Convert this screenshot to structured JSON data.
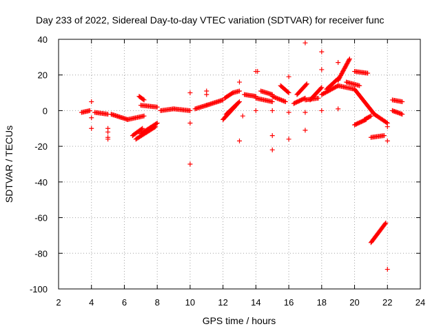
{
  "chart_data": {
    "type": "scatter",
    "title": "Day 233 of 2022, Sidereal Day-to-day VTEC variation (SDTVAR) for receiver func",
    "xlabel": "GPS time / hours",
    "ylabel": "SDTVAR / TECUs",
    "xlim": [
      2,
      24
    ],
    "ylim": [
      -100,
      40
    ],
    "xticks": [
      "2",
      "4",
      "6",
      "8",
      "10",
      "12",
      "14",
      "16",
      "18",
      "20",
      "22",
      "24"
    ],
    "yticks": [
      "-100",
      "-80",
      "-60",
      "-40",
      "-20",
      "0",
      "20",
      "40"
    ],
    "grid": true,
    "marker": "plus",
    "color": "#ff0000",
    "segments": [
      {
        "x0": 3.4,
        "y0": -1,
        "x1": 3.9,
        "y1": 0
      },
      {
        "x0": 4.2,
        "y0": -1,
        "x1": 5.0,
        "y1": -2
      },
      {
        "x0": 5.2,
        "y0": -2,
        "x1": 6.2,
        "y1": -5
      },
      {
        "x0": 6.2,
        "y0": -5,
        "x1": 7.2,
        "y1": -3
      },
      {
        "x0": 6.5,
        "y0": -14,
        "x1": 7.1,
        "y1": -10
      },
      {
        "x0": 6.7,
        "y0": -16,
        "x1": 7.9,
        "y1": -9
      },
      {
        "x0": 7.0,
        "y0": -13,
        "x1": 8.0,
        "y1": -7
      },
      {
        "x0": 6.9,
        "y0": 8,
        "x1": 7.2,
        "y1": 6
      },
      {
        "x0": 7.0,
        "y0": 3,
        "x1": 8.0,
        "y1": 2
      },
      {
        "x0": 8.2,
        "y0": 0,
        "x1": 9.0,
        "y1": 1
      },
      {
        "x0": 9.0,
        "y0": 1,
        "x1": 10.0,
        "y1": 0
      },
      {
        "x0": 10.3,
        "y0": 1,
        "x1": 11.0,
        "y1": 3
      },
      {
        "x0": 11.0,
        "y0": 3,
        "x1": 12.0,
        "y1": 6
      },
      {
        "x0": 12.0,
        "y0": -5,
        "x1": 12.8,
        "y1": 3
      },
      {
        "x0": 12.2,
        "y0": -2,
        "x1": 13.0,
        "y1": 5
      },
      {
        "x0": 12.1,
        "y0": 7,
        "x1": 12.6,
        "y1": 10
      },
      {
        "x0": 12.6,
        "y0": 10,
        "x1": 13.0,
        "y1": 11
      },
      {
        "x0": 13.3,
        "y0": 9,
        "x1": 14.0,
        "y1": 8
      },
      {
        "x0": 14.3,
        "y0": 11,
        "x1": 15.0,
        "y1": 9
      },
      {
        "x0": 14.0,
        "y0": 7,
        "x1": 15.0,
        "y1": 5
      },
      {
        "x0": 15.0,
        "y0": 8,
        "x1": 15.8,
        "y1": 5
      },
      {
        "x0": 15.5,
        "y0": 14,
        "x1": 16.0,
        "y1": 10
      },
      {
        "x0": 16.3,
        "y0": 4,
        "x1": 17.0,
        "y1": 7
      },
      {
        "x0": 16.5,
        "y0": 9,
        "x1": 17.1,
        "y1": 15
      },
      {
        "x0": 17.0,
        "y0": 6,
        "x1": 17.8,
        "y1": 7
      },
      {
        "x0": 17.3,
        "y0": 6,
        "x1": 18.0,
        "y1": 13
      },
      {
        "x0": 18.0,
        "y0": 9,
        "x1": 19.0,
        "y1": 14
      },
      {
        "x0": 18.3,
        "y0": 12,
        "x1": 19.0,
        "y1": 18
      },
      {
        "x0": 19.0,
        "y0": 17,
        "x1": 19.7,
        "y1": 29
      },
      {
        "x0": 19.0,
        "y0": 14,
        "x1": 20.0,
        "y1": 12
      },
      {
        "x0": 19.5,
        "y0": 16,
        "x1": 20.3,
        "y1": 14
      },
      {
        "x0": 20.0,
        "y0": 22,
        "x1": 20.8,
        "y1": 21
      },
      {
        "x0": 20.0,
        "y0": 12,
        "x1": 21.2,
        "y1": -2
      },
      {
        "x0": 21.2,
        "y0": -2,
        "x1": 22.0,
        "y1": -7
      },
      {
        "x0": 20.0,
        "y0": -8,
        "x1": 20.7,
        "y1": -5
      },
      {
        "x0": 20.6,
        "y0": -5,
        "x1": 21.0,
        "y1": -3
      },
      {
        "x0": 21.0,
        "y0": -15,
        "x1": 21.8,
        "y1": -14
      },
      {
        "x0": 21.0,
        "y0": -74,
        "x1": 21.9,
        "y1": -63
      },
      {
        "x0": 22.3,
        "y0": 6,
        "x1": 22.9,
        "y1": 5
      },
      {
        "x0": 22.3,
        "y0": 0,
        "x1": 22.9,
        "y1": -2
      }
    ],
    "points": [
      {
        "x": 4.0,
        "y": 5
      },
      {
        "x": 4.0,
        "y": -4
      },
      {
        "x": 4.0,
        "y": -10
      },
      {
        "x": 5.0,
        "y": -10
      },
      {
        "x": 5.0,
        "y": -12
      },
      {
        "x": 5.0,
        "y": -15
      },
      {
        "x": 5.0,
        "y": -16
      },
      {
        "x": 10.0,
        "y": 10
      },
      {
        "x": 10.0,
        "y": -7
      },
      {
        "x": 10.0,
        "y": -30
      },
      {
        "x": 11.0,
        "y": 11
      },
      {
        "x": 11.0,
        "y": 9
      },
      {
        "x": 13.0,
        "y": 16
      },
      {
        "x": 13.0,
        "y": -17
      },
      {
        "x": 13.2,
        "y": -3
      },
      {
        "x": 14.0,
        "y": 22
      },
      {
        "x": 14.1,
        "y": 22
      },
      {
        "x": 14.0,
        "y": 0
      },
      {
        "x": 15.0,
        "y": -14
      },
      {
        "x": 15.0,
        "y": -22
      },
      {
        "x": 15.0,
        "y": 0
      },
      {
        "x": 16.0,
        "y": 19
      },
      {
        "x": 16.0,
        "y": -16
      },
      {
        "x": 16.0,
        "y": -1
      },
      {
        "x": 17.0,
        "y": 38
      },
      {
        "x": 17.0,
        "y": -11
      },
      {
        "x": 17.0,
        "y": -1
      },
      {
        "x": 18.0,
        "y": 33
      },
      {
        "x": 18.0,
        "y": 23
      },
      {
        "x": 18.0,
        "y": 0
      },
      {
        "x": 19.0,
        "y": 27
      },
      {
        "x": 19.0,
        "y": 1
      },
      {
        "x": 22.0,
        "y": -9
      },
      {
        "x": 22.0,
        "y": -17
      },
      {
        "x": 22.0,
        "y": -89
      }
    ]
  }
}
